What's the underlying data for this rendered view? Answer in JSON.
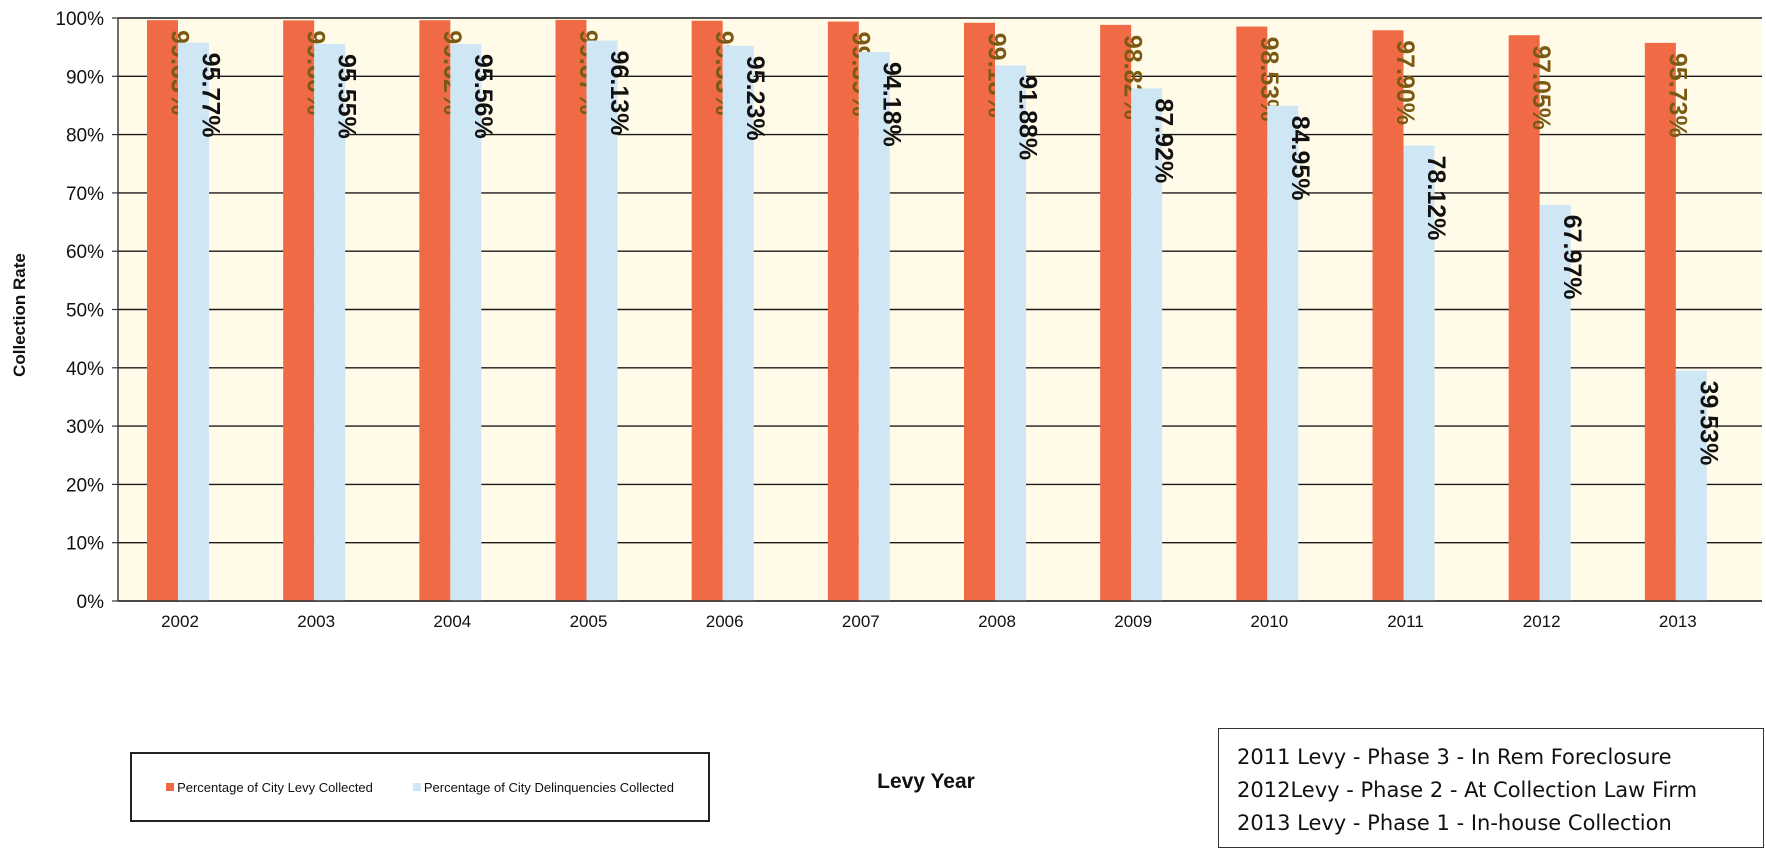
{
  "chart_data": {
    "type": "bar",
    "xlabel": "Levy Year",
    "ylabel": "Collection Rate",
    "ylim": [
      0,
      100
    ],
    "yticks": [
      "0%",
      "10%",
      "20%",
      "30%",
      "40%",
      "50%",
      "60%",
      "70%",
      "80%",
      "90%",
      "100%"
    ],
    "grid": true,
    "categories": [
      "2002",
      "2003",
      "2004",
      "2005",
      "2006",
      "2007",
      "2008",
      "2009",
      "2010",
      "2011",
      "2012",
      "2013"
    ],
    "series": [
      {
        "name": "Percentage of City Levy Collected",
        "color": "#f06b45",
        "values": [
          99.63,
          99.6,
          99.62,
          99.67,
          99.53,
          99.39,
          99.18,
          98.82,
          98.53,
          97.9,
          97.05,
          95.73
        ],
        "labels": [
          "99.63%",
          "99.60%",
          "99.62%",
          "99.67%",
          "99.53%",
          "99.39%",
          "99.18%",
          "98.82%",
          "98.53%",
          "97.90%",
          "97.05%",
          "95.73%"
        ]
      },
      {
        "name": "Percentage of City Delinquencies Collected",
        "color": "#cfe6f5",
        "values": [
          95.77,
          95.55,
          95.56,
          96.13,
          95.23,
          94.18,
          91.88,
          87.92,
          84.95,
          78.12,
          67.97,
          39.53
        ],
        "labels": [
          "95.77%",
          "95.55%",
          "95.56%",
          "96.13%",
          "95.23%",
          "94.18%",
          "91.88%",
          "87.92%",
          "84.95%",
          "78.12%",
          "67.97%",
          "39.53%"
        ]
      }
    ],
    "legend_position": "bottom-left",
    "plot_background": "#fffbe8"
  },
  "notes": [
    "2011 Levy - Phase 3 - In Rem Foreclosure",
    "2012Levy - Phase 2 - At Collection Law Firm",
    "2013 Levy - Phase 1 - In-house Collection"
  ]
}
